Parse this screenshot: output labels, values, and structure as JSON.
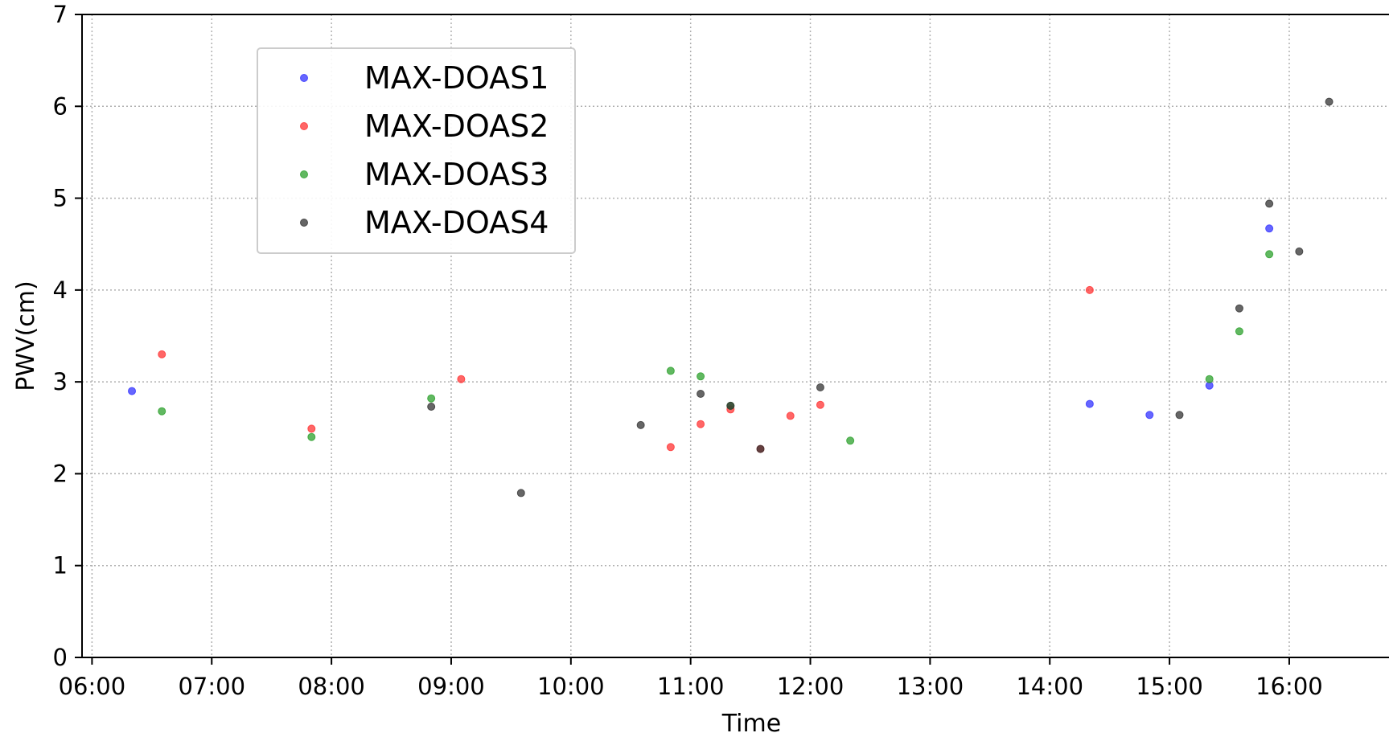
{
  "chart_data": {
    "type": "scatter",
    "title": "",
    "xlabel": "Time",
    "ylabel": "PWV(cm)",
    "xlim": [
      "05:55",
      "16:50"
    ],
    "ylim": [
      0,
      7
    ],
    "x_ticks": [
      "06:00",
      "07:00",
      "08:00",
      "09:00",
      "10:00",
      "11:00",
      "12:00",
      "13:00",
      "14:00",
      "15:00",
      "16:00"
    ],
    "y_ticks": [
      0,
      1,
      2,
      3,
      4,
      5,
      6,
      7
    ],
    "grid": true,
    "grid_style": "dotted",
    "legend_position": "upper-left",
    "series": [
      {
        "name": "MAX-DOAS1",
        "color": "#3333ff",
        "points": [
          {
            "x": "06:20",
            "y": 2.9
          },
          {
            "x": "14:20",
            "y": 2.76
          },
          {
            "x": "14:50",
            "y": 2.64
          },
          {
            "x": "15:20",
            "y": 2.96
          },
          {
            "x": "15:50",
            "y": 4.67
          }
        ]
      },
      {
        "name": "MAX-DOAS2",
        "color": "#ff3333",
        "points": [
          {
            "x": "06:35",
            "y": 3.3
          },
          {
            "x": "07:50",
            "y": 2.49
          },
          {
            "x": "09:05",
            "y": 3.03
          },
          {
            "x": "10:50",
            "y": 2.29
          },
          {
            "x": "11:05",
            "y": 2.54
          },
          {
            "x": "11:20",
            "y": 2.7
          },
          {
            "x": "11:35",
            "y": 2.27
          },
          {
            "x": "11:50",
            "y": 2.63
          },
          {
            "x": "12:05",
            "y": 2.75
          },
          {
            "x": "14:20",
            "y": 4.0
          }
        ]
      },
      {
        "name": "MAX-DOAS3",
        "color": "#2ca02c",
        "points": [
          {
            "x": "06:35",
            "y": 2.68
          },
          {
            "x": "07:50",
            "y": 2.4
          },
          {
            "x": "08:50",
            "y": 2.82
          },
          {
            "x": "10:50",
            "y": 3.12
          },
          {
            "x": "11:05",
            "y": 3.06
          },
          {
            "x": "11:20",
            "y": 2.74
          },
          {
            "x": "12:20",
            "y": 2.36
          },
          {
            "x": "15:20",
            "y": 3.03
          },
          {
            "x": "15:35",
            "y": 3.55
          },
          {
            "x": "15:50",
            "y": 4.39
          }
        ]
      },
      {
        "name": "MAX-DOAS4",
        "color": "#333333",
        "points": [
          {
            "x": "08:50",
            "y": 2.73
          },
          {
            "x": "09:35",
            "y": 1.79
          },
          {
            "x": "10:35",
            "y": 2.53
          },
          {
            "x": "11:05",
            "y": 2.87
          },
          {
            "x": "11:20",
            "y": 2.74
          },
          {
            "x": "11:35",
            "y": 2.27
          },
          {
            "x": "12:05",
            "y": 2.94
          },
          {
            "x": "15:05",
            "y": 2.64
          },
          {
            "x": "15:35",
            "y": 3.8
          },
          {
            "x": "15:50",
            "y": 4.94
          },
          {
            "x": "16:05",
            "y": 4.42
          },
          {
            "x": "16:20",
            "y": 6.05
          }
        ]
      }
    ]
  }
}
